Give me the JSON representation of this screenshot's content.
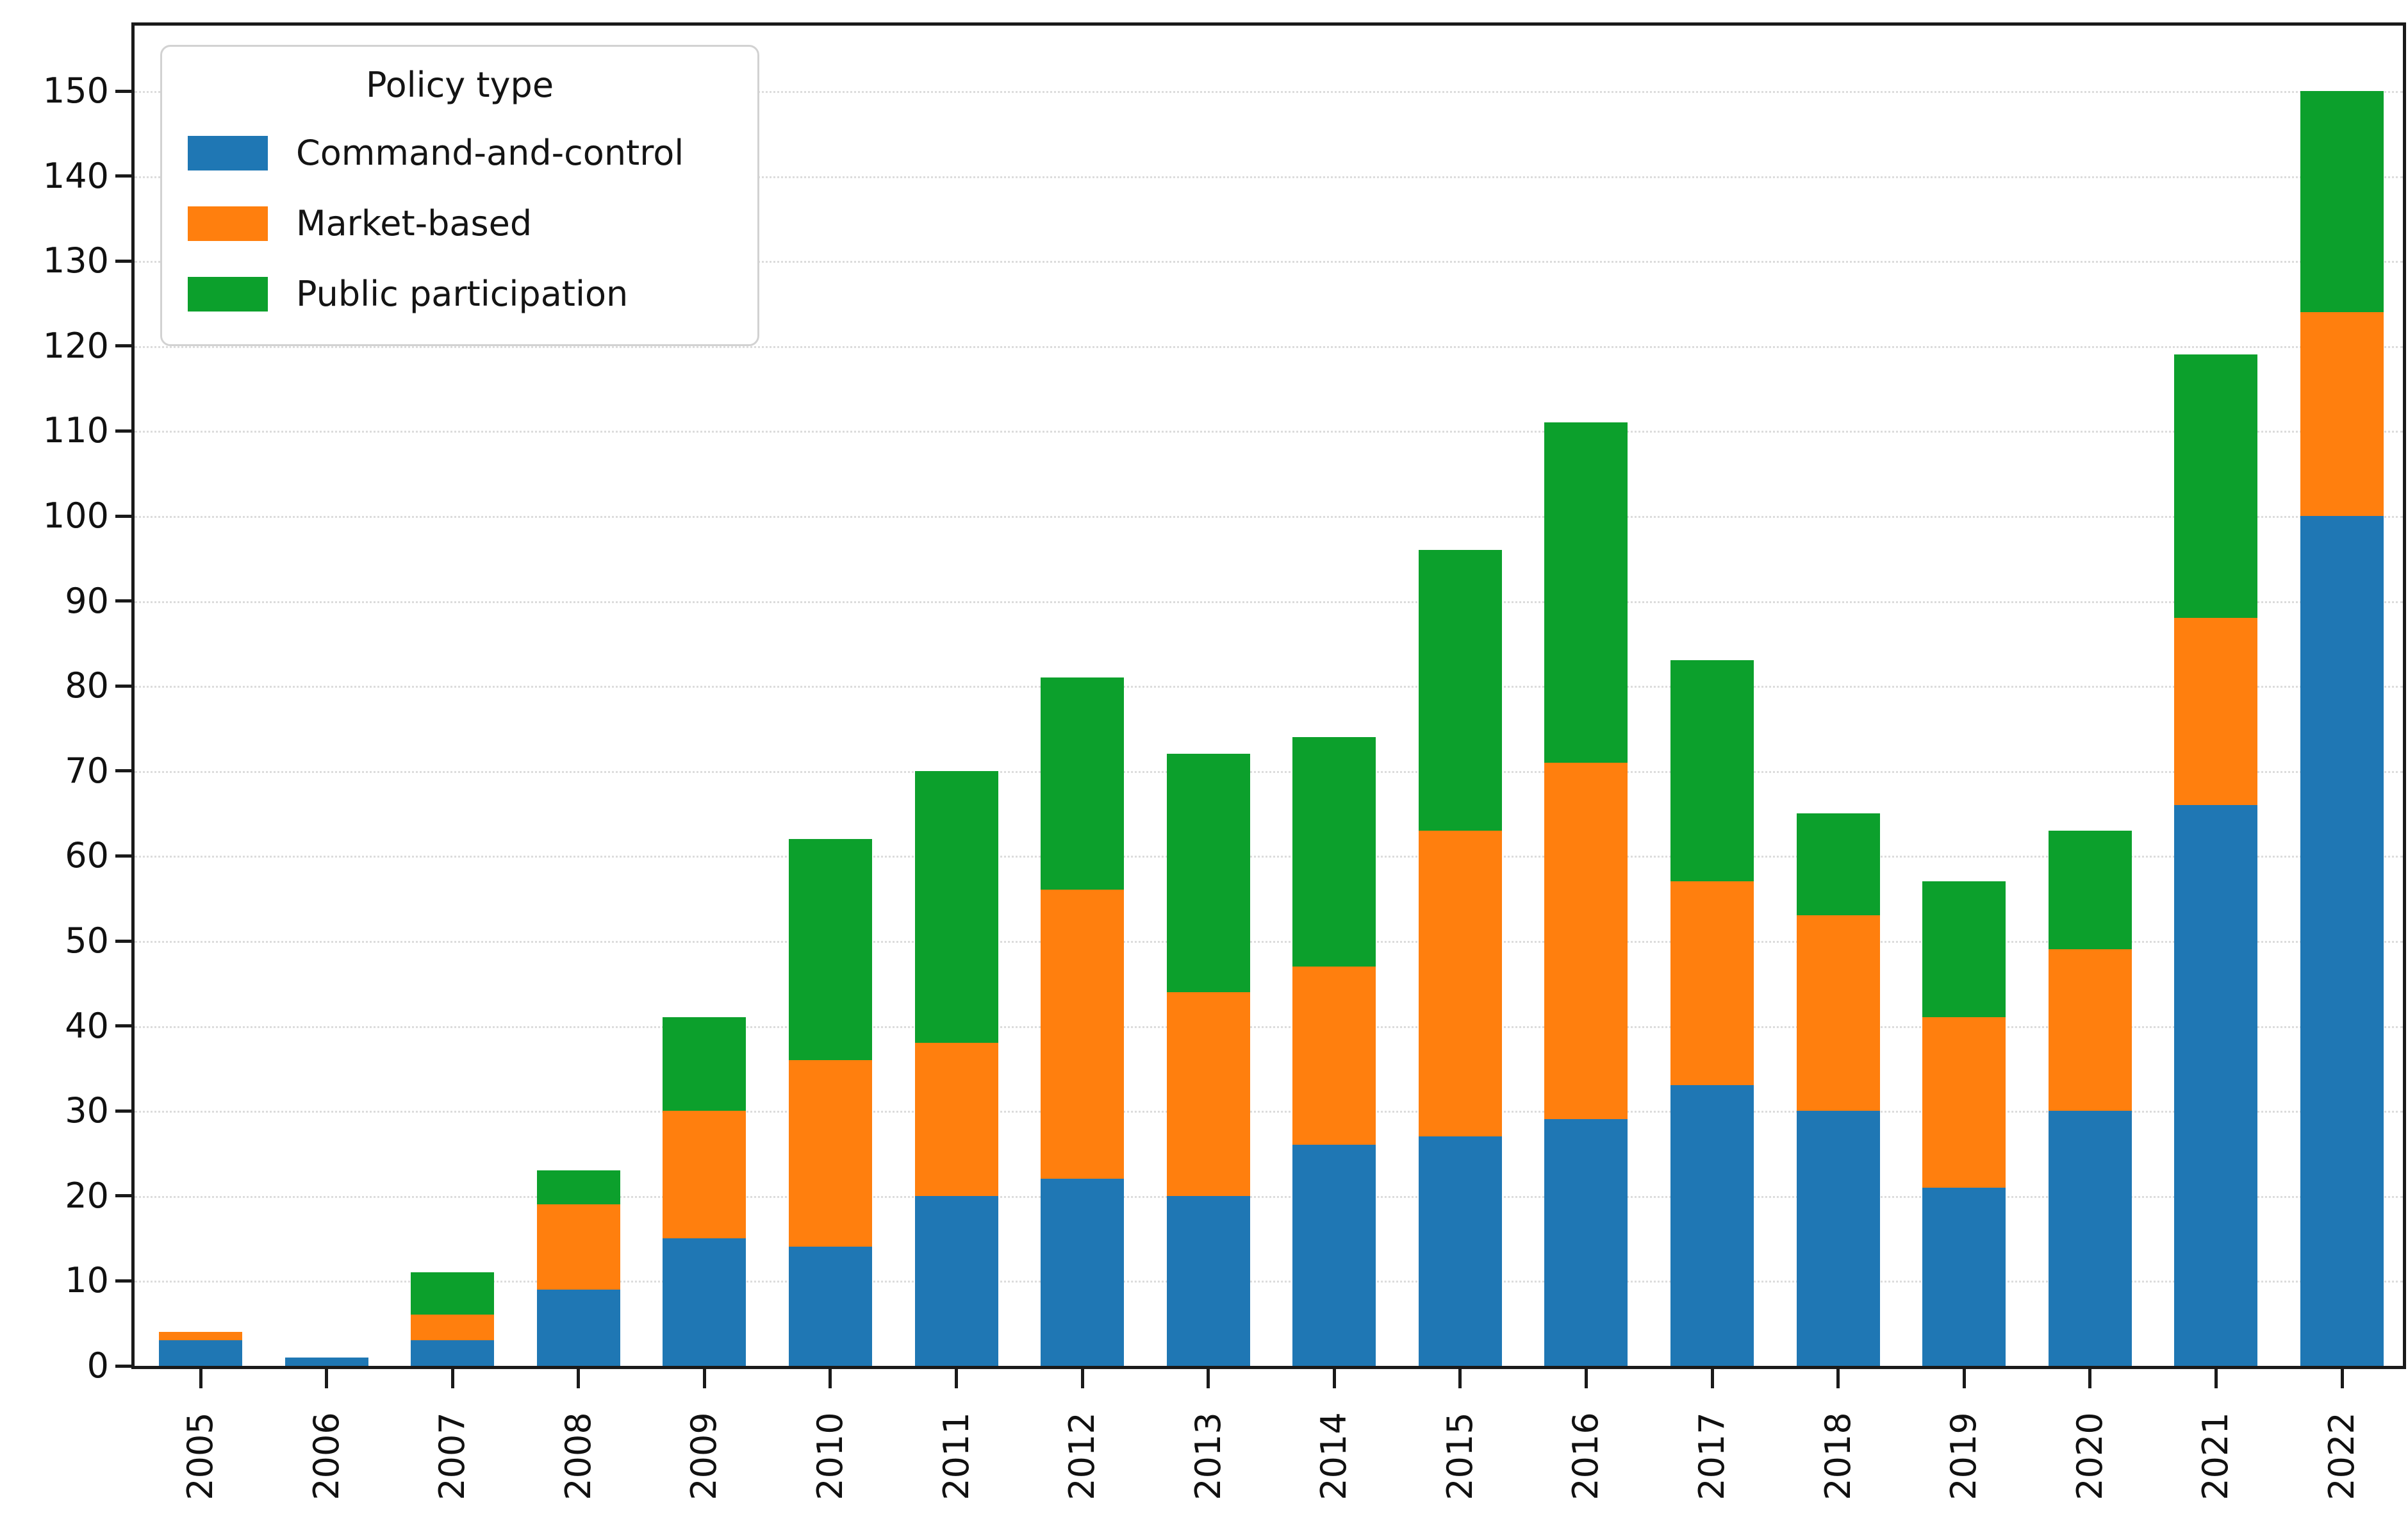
{
  "figure": {
    "background": "#ffffff",
    "text_color": "#111111",
    "spine_color": "#1a1a1a",
    "gridline_color": "#dcdcdc"
  },
  "legend": {
    "title": "Policy type",
    "position": "upper left"
  },
  "chart_data": {
    "type": "bar",
    "stacked": true,
    "title": "",
    "xlabel": "",
    "ylabel": "",
    "categories": [
      "2005",
      "2006",
      "2007",
      "2008",
      "2009",
      "2010",
      "2011",
      "2012",
      "2013",
      "2014",
      "2015",
      "2016",
      "2017",
      "2018",
      "2019",
      "2020",
      "2021",
      "2022"
    ],
    "series": [
      {
        "name": "Command-and-control",
        "color": "#1f77b4",
        "values": [
          3,
          1,
          3,
          9,
          15,
          14,
          20,
          22,
          20,
          26,
          27,
          29,
          33,
          30,
          21,
          30,
          66,
          100
        ]
      },
      {
        "name": "Market-based",
        "color": "#ff7f0e",
        "values": [
          1,
          0,
          3,
          10,
          15,
          22,
          18,
          34,
          24,
          21,
          36,
          42,
          24,
          23,
          20,
          19,
          22,
          24
        ]
      },
      {
        "name": "Public participation",
        "color": "#0ca02c",
        "values": [
          0,
          0,
          5,
          4,
          11,
          26,
          32,
          25,
          28,
          27,
          33,
          40,
          26,
          12,
          16,
          14,
          31,
          26
        ]
      }
    ],
    "totals": [
      4,
      1,
      11,
      23,
      41,
      62,
      70,
      81,
      72,
      74,
      96,
      111,
      83,
      65,
      57,
      63,
      119,
      150
    ],
    "ylim": [
      0,
      157.7
    ],
    "yticks": [
      0,
      10,
      20,
      30,
      40,
      50,
      60,
      70,
      80,
      90,
      100,
      110,
      120,
      130,
      140,
      150
    ],
    "grid": "horizontal-dotted",
    "legend_position": "upper left",
    "x_tick_rotation": 90
  }
}
